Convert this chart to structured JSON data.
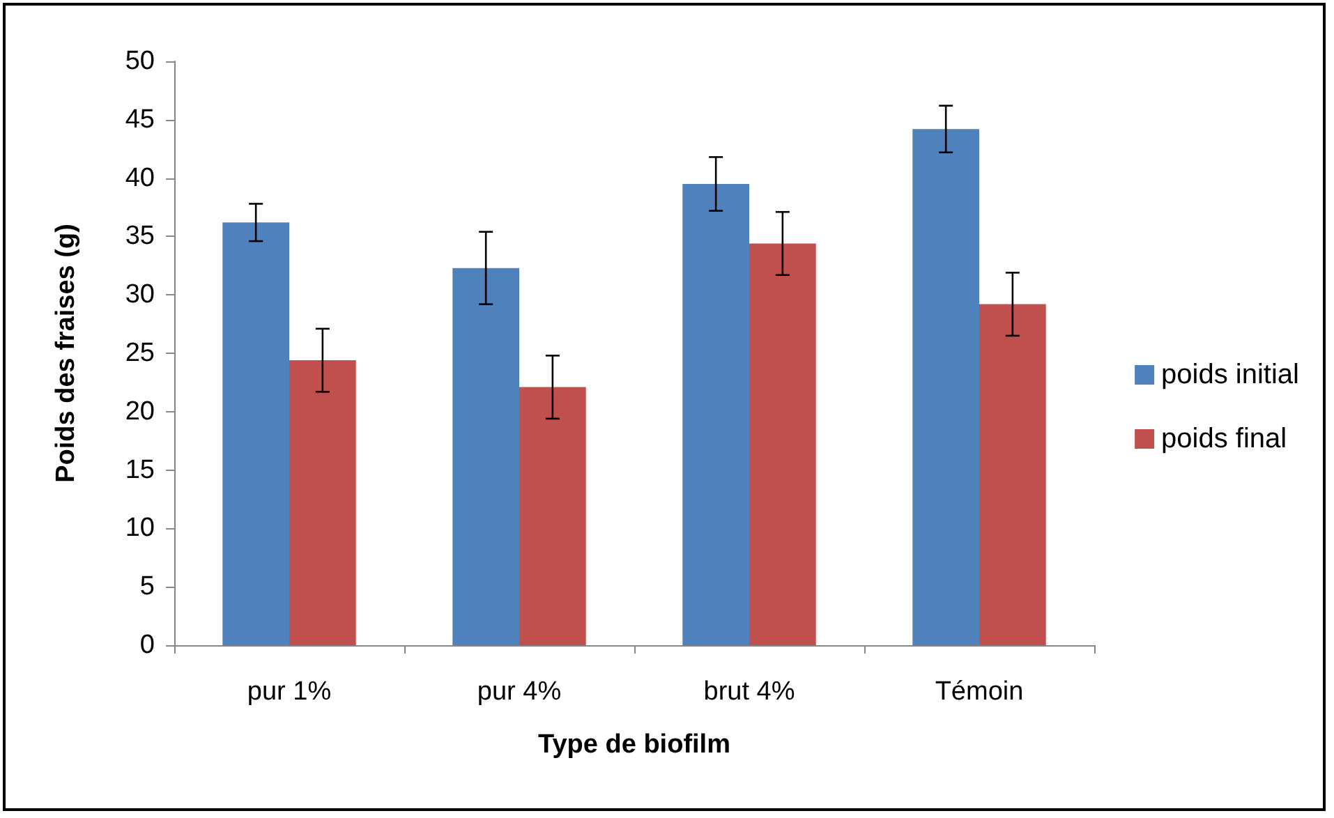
{
  "chart_data": {
    "type": "bar",
    "xlabel": "Type de biofilm",
    "ylabel": "Poids des fraises (g)",
    "categories": [
      "pur 1%",
      "pur 4%",
      "brut 4%",
      "Témoin"
    ],
    "series": [
      {
        "name": "poids initial",
        "color": "#4f81bd",
        "values": [
          36.2,
          32.3,
          39.5,
          44.2
        ],
        "errors": [
          1.6,
          3.1,
          2.3,
          2.0
        ]
      },
      {
        "name": "poids final",
        "color": "#c0504d",
        "values": [
          24.4,
          22.1,
          34.4,
          29.2
        ],
        "errors": [
          2.7,
          2.7,
          2.7,
          2.7
        ]
      }
    ],
    "ylim": [
      0,
      50
    ],
    "yticks": [
      0,
      5,
      10,
      15,
      20,
      25,
      30,
      35,
      40,
      45,
      50
    ],
    "grid": false,
    "legend": "right"
  }
}
